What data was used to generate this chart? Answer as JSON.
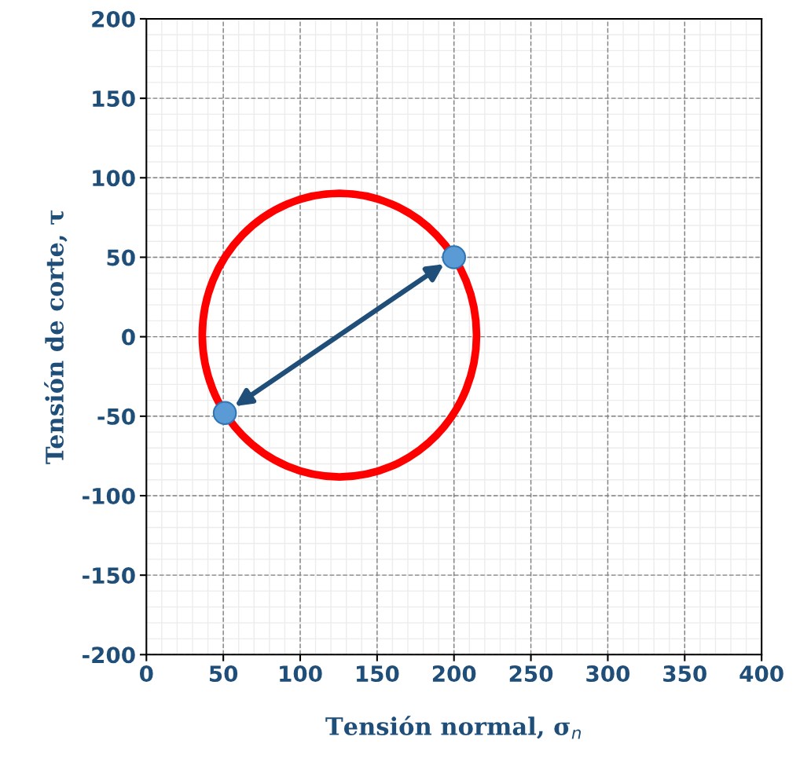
{
  "chart_data": {
    "type": "scatter",
    "xlabel": "Tensión normal, σ$_{n}$",
    "ylabel": "Tensión de corte, τ",
    "xlim": [
      0,
      400
    ],
    "ylim": [
      -200,
      200
    ],
    "xticks": [
      0,
      50,
      100,
      150,
      200,
      250,
      300,
      350,
      400
    ],
    "yticks": [
      -200,
      -150,
      -100,
      -50,
      0,
      50,
      100,
      150,
      200
    ],
    "grid": true,
    "series": [
      {
        "color": "#5b9bd5",
        "x": [
          200,
          51
        ],
        "values": [
          50,
          -48
        ]
      }
    ]
  }
}
